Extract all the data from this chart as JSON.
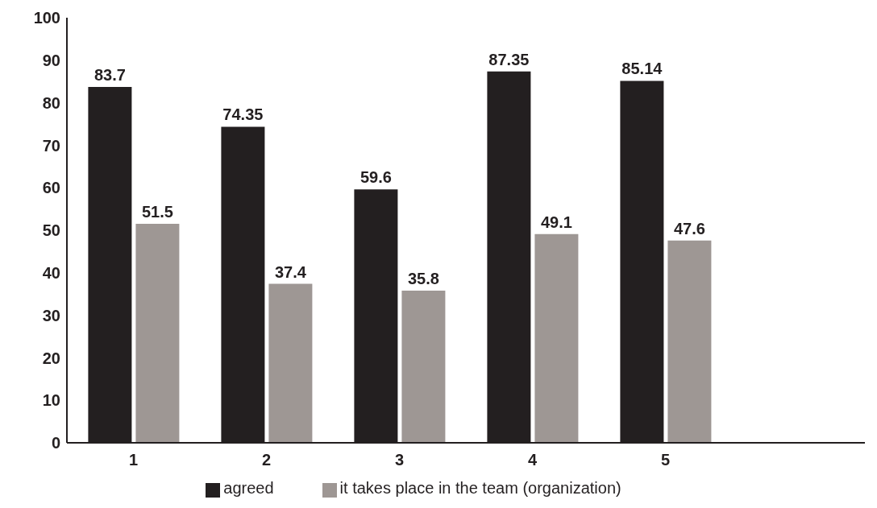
{
  "chart_data": {
    "type": "bar",
    "categories": [
      "1",
      "2",
      "3",
      "4",
      "5",
      null
    ],
    "series": [
      {
        "name": "agreed",
        "color": "#231f20",
        "values": [
          83.7,
          74.35,
          59.6,
          87.35,
          85.14,
          null
        ]
      },
      {
        "name": "it takes place in the team (organization)",
        "color": "#9e9794",
        "values": [
          51.5,
          37.4,
          35.8,
          49.1,
          47.6,
          null
        ]
      }
    ],
    "ylim": [
      0,
      100
    ],
    "yticks": [
      0,
      10,
      20,
      30,
      40,
      50,
      60,
      70,
      80,
      90,
      100
    ],
    "grid": false,
    "legend": "bottom",
    "data_labels": true
  }
}
